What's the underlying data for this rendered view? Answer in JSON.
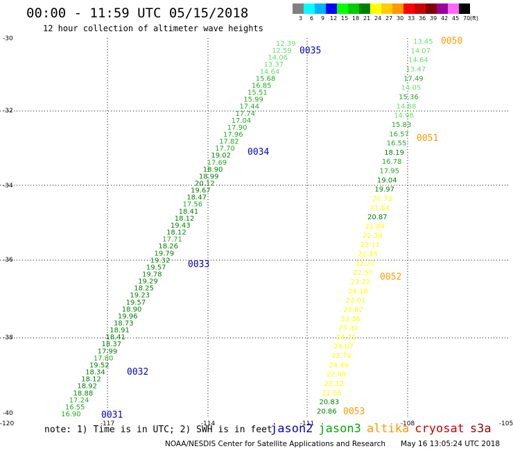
{
  "header": {
    "title": "00:00 - 11:59 UTC 05/15/2018",
    "subtitle": "12 hour collection of altimeter wave heights"
  },
  "colorbar": {
    "colors": [
      "#808080",
      "#00ffff",
      "#00b4ff",
      "#0000ff",
      "#00ff00",
      "#00cc00",
      "#008000",
      "#ffff00",
      "#ffcc00",
      "#ff9900",
      "#ff0000",
      "#cc0000",
      "#800000",
      "#990099",
      "#ff66ff",
      "#000000"
    ],
    "labels": [
      "3",
      "6",
      "9",
      "12",
      "15",
      "18",
      "21",
      "24",
      "27",
      "30",
      "33",
      "36",
      "39",
      "42",
      "45",
      "70",
      "(ft)"
    ]
  },
  "map": {
    "lon_ticks": [
      "-120",
      "-117",
      "-114",
      "-111",
      "-108",
      "-105"
    ],
    "lat_ticks": [
      "-30",
      "-32",
      "-34",
      "-36",
      "-38",
      "-40"
    ],
    "track1": {
      "heights": [
        "12.39",
        "12.59",
        "14.06",
        "13.37",
        "14.64",
        "15.68",
        "16.85",
        "15.51",
        "15.99",
        "17.44",
        "17.74",
        "17.04",
        "17.90",
        "17.96",
        "17.82",
        "17.70",
        "19.02",
        "17.69",
        "18.90",
        "18.99",
        "20.12",
        "19.67",
        "18.47",
        "17.56",
        "18.41",
        "18.12",
        "19.43",
        "18.12",
        "17.71",
        "18.26",
        "19.79",
        "19.32",
        "19.57",
        "19.78",
        "19.29",
        "18.25",
        "19.23",
        "19.57",
        "18.90",
        "19.96",
        "18.73",
        "18.91",
        "18.41",
        "18.37",
        "17.99",
        "17.80",
        "19.52",
        "18.34",
        "18.12",
        "18.92",
        "18.88",
        "17.24",
        "16.55",
        "16.90"
      ],
      "colors": [
        "#66dd66",
        "#66dd66",
        "#66dd66",
        "#66dd66",
        "#66dd66",
        "#22aa22",
        "#22aa22",
        "#22aa22",
        "#22aa22",
        "#22aa22",
        "#22aa22",
        "#22aa22",
        "#22aa22",
        "#22aa22",
        "#22aa22",
        "#22aa22",
        "#008000",
        "#22aa22",
        "#008000",
        "#008000",
        "#008000",
        "#008000",
        "#008000",
        "#22aa22",
        "#008000",
        "#008000",
        "#008000",
        "#008000",
        "#22aa22",
        "#008000",
        "#008000",
        "#008000",
        "#008000",
        "#008000",
        "#008000",
        "#008000",
        "#008000",
        "#008000",
        "#008000",
        "#008000",
        "#008000",
        "#008000",
        "#008000",
        "#008000",
        "#008000",
        "#22aa22",
        "#008000",
        "#008000",
        "#008000",
        "#008000",
        "#008000",
        "#22aa22",
        "#22aa22",
        "#22aa22"
      ],
      "time_labels": [
        "0035",
        "0034",
        "0033",
        "0032",
        "0031"
      ]
    },
    "track2": {
      "heights": [
        "13.45",
        "14.07",
        "14.64",
        "13.47",
        "17.49",
        "14.05",
        "15.36",
        "14.88",
        "14.96",
        "15.83",
        "16.57",
        "16.55",
        "18.19",
        "16.78",
        "17.95",
        "19.04",
        "19.97",
        "21.73",
        "21.64",
        "20.87",
        "21.84",
        "22.38",
        "23.11",
        "22.45",
        "22.27",
        "22.57",
        "23.22",
        "24.18",
        "23.01",
        "23.82",
        "22.56",
        "23.32",
        "24.71",
        "24.07",
        "23.79",
        "24.49",
        "22.69",
        "23.12",
        "21.06",
        "20.83",
        "20.86"
      ],
      "colors": [
        "#66dd66",
        "#66dd66",
        "#66dd66",
        "#66dd66",
        "#22aa22",
        "#66dd66",
        "#22aa22",
        "#66dd66",
        "#66dd66",
        "#22aa22",
        "#22aa22",
        "#22aa22",
        "#008000",
        "#22aa22",
        "#22aa22",
        "#008000",
        "#008000",
        "#ffff00",
        "#ffff00",
        "#008000",
        "#ffff00",
        "#ffff00",
        "#ffff00",
        "#ffff00",
        "#ffff00",
        "#ffff00",
        "#ffff00",
        "#ffff00",
        "#ffff00",
        "#ffff00",
        "#ffff00",
        "#ffff00",
        "#ffff00",
        "#ffff00",
        "#ffff00",
        "#ffff00",
        "#ffff00",
        "#ffff00",
        "#ffff00",
        "#008000",
        "#008000"
      ],
      "time_labels": [
        "0050",
        "0051",
        "0052",
        "0053"
      ]
    }
  },
  "footer": {
    "note": "note: 1) Time is in UTC; 2) SWH is in feet",
    "satellites": [
      {
        "name": "jason2",
        "color": "#0000cc"
      },
      {
        "name": "jason3",
        "color": "#00aa00"
      },
      {
        "name": "altika",
        "color": "#ff9900"
      },
      {
        "name": "cryosat",
        "color": "#cc0000"
      },
      {
        "name": "s3a",
        "color": "#990000"
      }
    ],
    "credit": "NOAA/NESDIS Center for Satellite Applications and Research",
    "timestamp": "May 16 13:05:24 UTC 2018"
  }
}
